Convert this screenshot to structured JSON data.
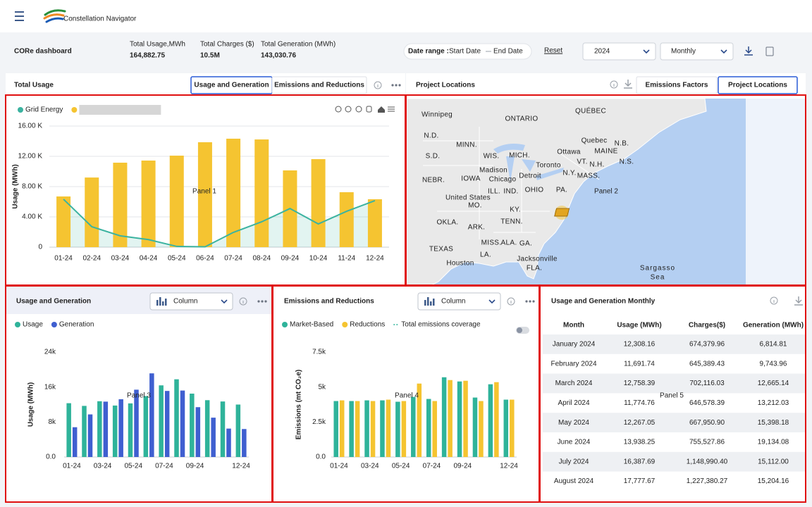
{
  "header": {
    "brand": "Constellation Navigator",
    "title": "CORe dashboard",
    "kpis": [
      {
        "label": "Total Usage,MWh",
        "value": "164,882.75"
      },
      {
        "label": "Total Charges ($)",
        "value": "10.5M"
      },
      {
        "label": "Total Generation (MWh)",
        "value": "143,030.76"
      }
    ],
    "date_range": {
      "label": "Date range :",
      "start": "Start Date",
      "end": "End Date"
    },
    "reset": "Reset",
    "year": "2024",
    "period": "Monthly"
  },
  "panel_labels": [
    "Panel 1",
    "Panel 2",
    "Panel 3",
    "Panel 4",
    "Panel 5"
  ],
  "chart_data": [
    {
      "type": "combo",
      "title": "Total Usage",
      "tabs": [
        "Usage and Generation",
        "Emissions and Reductions"
      ],
      "y_label": "Usage (MWh)",
      "categories": [
        "01-24",
        "02-24",
        "03-24",
        "04-24",
        "05-24",
        "06-24",
        "07-24",
        "08-24",
        "09-24",
        "10-24",
        "11-24",
        "12-24"
      ],
      "series": [
        {
          "name": "Grid Energy",
          "color": "#3bb3a0",
          "kind": "area",
          "values": [
            6330,
            2700,
            1500,
            1000,
            100,
            50,
            1950,
            3350,
            5100,
            3070,
            4740,
            6140
          ]
        },
        {
          "color": "#f5c431",
          "kind": "bar",
          "values": [
            6700,
            9200,
            11160,
            11440,
            12090,
            13860,
            14330,
            14230,
            10140,
            11630,
            7260,
            6330
          ]
        }
      ],
      "ylim": [
        0,
        16000
      ],
      "yticks": [
        0,
        {
          "value": 4000,
          "label": "4.00 K"
        },
        {
          "value": 8000,
          "label": "8.00 K"
        },
        {
          "value": 12000,
          "label": "12.00 K"
        },
        {
          "value": 16000,
          "label": "16.00 K"
        }
      ],
      "grid": true
    },
    {
      "type": "bar",
      "title": "Usage and Generation",
      "select": "Column",
      "y_label": "Usage (MWh)",
      "categories": [
        "01-24",
        null,
        "03-24",
        null,
        "05-24",
        null,
        "07-24",
        null,
        "09-24",
        null,
        null,
        "12-24"
      ],
      "series": [
        {
          "name": "Usage",
          "color": "#2fb39a",
          "values": [
            12308.16,
            11691.74,
            12758.39,
            11774.76,
            12267.05,
            13938.25,
            16387.69,
            17777.67,
            14500,
            13000,
            12700,
            12000
          ]
        },
        {
          "name": "Generation",
          "color": "#3f5fd0",
          "values": [
            6814.81,
            9743.96,
            12665.14,
            13212.03,
            15398.18,
            19134.08,
            15112.0,
            15204.16,
            11400,
            9000,
            6500,
            6400
          ]
        }
      ],
      "ylim": [
        0,
        24000
      ],
      "yticks": [
        {
          "value": 0,
          "label": "0.0"
        },
        {
          "value": 8000,
          "label": "8k"
        },
        {
          "value": 16000,
          "label": "16k"
        },
        {
          "value": 24000,
          "label": "24k"
        }
      ],
      "grid": false
    },
    {
      "type": "bar",
      "title": "Emissions and Reductions",
      "select": "Column",
      "y_label": "Emissions (mt CO₂e)",
      "categories": [
        "01-24",
        null,
        "03-24",
        null,
        "05-24",
        null,
        "07-24",
        null,
        "09-24",
        null,
        null,
        "12-24"
      ],
      "series": [
        {
          "name": "Market-Based",
          "color": "#2fb39a",
          "values": [
            4000,
            4000,
            4050,
            4050,
            3950,
            4300,
            4150,
            5700,
            5400,
            4250,
            5200,
            4100
          ]
        },
        {
          "name": "Reductions",
          "color": "#f5c431",
          "values": [
            4050,
            4000,
            4000,
            4100,
            4000,
            5250,
            4000,
            5500,
            5450,
            4000,
            5350,
            4100
          ]
        },
        {
          "name": "Total emissions coverage",
          "color": "#2fb39a",
          "kind": "dashed-line",
          "values": [
            null,
            null,
            null,
            null,
            null,
            null,
            null,
            null,
            null,
            null,
            null,
            null
          ]
        }
      ],
      "ylim": [
        0,
        7500
      ],
      "yticks": [
        {
          "value": 0,
          "label": "0.0"
        },
        {
          "value": 2500,
          "label": "2.5k"
        },
        {
          "value": 5000,
          "label": "5k"
        },
        {
          "value": 7500,
          "label": "7.5k"
        }
      ],
      "grid": false
    }
  ],
  "map": {
    "title": "Project Locations",
    "tabs": [
      "Emissions Factors",
      "Project Locations"
    ],
    "labels": [
      "Winnipeg",
      "ONTARIO",
      "QUÉBEC",
      "N.D.",
      "MINN.",
      "S.D.",
      "WIS.",
      "MICH.",
      "Ottawa",
      "Quebec",
      "MAINE",
      "N.B.",
      "N.S.",
      "Toronto",
      "VT.",
      "N.H.",
      "Madison",
      "Detroit",
      "N.Y.",
      "MASS.",
      "NEBR.",
      "IOWA",
      "Chicago",
      "ILL.",
      "IND.",
      "OHIO",
      "PA.",
      "United States",
      "MO.",
      "KY.",
      "OKLA.",
      "ARK.",
      "TENN.",
      "MISS.",
      "ALA.",
      "GA.",
      "TEXAS",
      "LA.",
      "Houston",
      "Jacksonville",
      "FLA.",
      "Sargasso",
      "Sea"
    ]
  },
  "table": {
    "title": "Usage and Generation Monthly",
    "columns": [
      "Month",
      "Usage (MWh)",
      "Charges($)",
      "Generation (MWh)"
    ],
    "rows": [
      [
        "January 2024",
        "12,308.16",
        "674,379.96",
        "6,814.81"
      ],
      [
        "February 2024",
        "11,691.74",
        "645,389.43",
        "9,743.96"
      ],
      [
        "March 2024",
        "12,758.39",
        "702,116.03",
        "12,665.14"
      ],
      [
        "April 2024",
        "11,774.76",
        "646,578.39",
        "13,212.03"
      ],
      [
        "May 2024",
        "12,267.05",
        "667,950.90",
        "15,398.18"
      ],
      [
        "June 2024",
        "13,938.25",
        "755,527.86",
        "19,134.08"
      ],
      [
        "July 2024",
        "16,387.69",
        "1,148,990.40",
        "15,112.00"
      ],
      [
        "August 2024",
        "17,777.67",
        "1,227,380.27",
        "15,204.16"
      ]
    ]
  }
}
